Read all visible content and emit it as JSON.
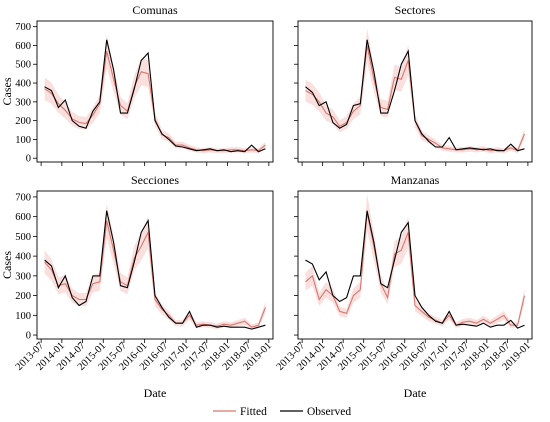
{
  "figure": {
    "xlabel": "Date",
    "ylabel": "Cases",
    "legend": {
      "position": "bottom-center",
      "items": [
        {
          "label": "Fitted",
          "color": "#d9776f",
          "key": "fitted"
        },
        {
          "label": "Observed",
          "color": "#000000",
          "key": "observed"
        }
      ]
    },
    "colors": {
      "fitted": "#d9776f",
      "ribbon": "#f4c7c3",
      "observed": "#000000",
      "frame": "#000000"
    }
  },
  "chart_data": [
    {
      "type": "line",
      "title": "Comunas",
      "xlabel": "",
      "ylabel": "Cases",
      "ylim": [
        0,
        700
      ],
      "yticks": [
        0,
        100,
        200,
        300,
        400,
        500,
        600,
        700
      ],
      "xlim": [
        "2013-07",
        "2019-01"
      ],
      "xticks": [
        "2013-07",
        "2014-01",
        "2014-07",
        "2015-01",
        "2015-07",
        "2016-01",
        "2016-07",
        "2017-01",
        "2017-07",
        "2018-01",
        "2018-07",
        "2019-01"
      ],
      "x": [
        "2013-08",
        "2013-10",
        "2013-12",
        "2014-02",
        "2014-04",
        "2014-06",
        "2014-08",
        "2014-10",
        "2014-12",
        "2015-02",
        "2015-04",
        "2015-06",
        "2015-08",
        "2015-10",
        "2015-12",
        "2016-02",
        "2016-04",
        "2016-06",
        "2016-08",
        "2016-10",
        "2016-12",
        "2017-02",
        "2017-04",
        "2017-06",
        "2017-08",
        "2017-10",
        "2017-12",
        "2018-02",
        "2018-04",
        "2018-06",
        "2018-08",
        "2018-10",
        "2018-12"
      ],
      "series": [
        {
          "name": "Fitted",
          "values": [
            370,
            345,
            290,
            255,
            210,
            190,
            185,
            230,
            290,
            570,
            420,
            280,
            250,
            380,
            460,
            450,
            210,
            125,
            110,
            70,
            70,
            55,
            45,
            40,
            45,
            40,
            40,
            45,
            45,
            40,
            45,
            40,
            70
          ]
        },
        {
          "name": "Observed",
          "values": [
            380,
            360,
            270,
            310,
            200,
            170,
            160,
            250,
            300,
            630,
            470,
            240,
            240,
            370,
            520,
            560,
            200,
            130,
            100,
            65,
            60,
            50,
            40,
            45,
            50,
            40,
            45,
            35,
            40,
            35,
            70,
            35,
            50
          ]
        }
      ]
    },
    {
      "type": "line",
      "title": "Sectores",
      "xlabel": "",
      "ylabel": "",
      "ylim": [
        0,
        700
      ],
      "yticks": [
        0,
        100,
        200,
        300,
        400,
        500,
        600,
        700
      ],
      "xlim": [
        "2013-07",
        "2019-01"
      ],
      "xticks": [
        "2013-07",
        "2014-01",
        "2014-07",
        "2015-01",
        "2015-07",
        "2016-01",
        "2016-07",
        "2017-01",
        "2017-07",
        "2018-01",
        "2018-07",
        "2019-01"
      ],
      "x": [
        "2013-08",
        "2013-10",
        "2013-12",
        "2014-02",
        "2014-04",
        "2014-06",
        "2014-08",
        "2014-10",
        "2014-12",
        "2015-02",
        "2015-04",
        "2015-06",
        "2015-08",
        "2015-10",
        "2015-12",
        "2016-02",
        "2016-04",
        "2016-06",
        "2016-08",
        "2016-10",
        "2016-12",
        "2017-02",
        "2017-04",
        "2017-06",
        "2017-08",
        "2017-10",
        "2017-12",
        "2018-02",
        "2018-04",
        "2018-06",
        "2018-08",
        "2018-10",
        "2018-12"
      ],
      "series": [
        {
          "name": "Fitted",
          "values": [
            360,
            340,
            300,
            240,
            220,
            170,
            190,
            250,
            280,
            600,
            420,
            270,
            260,
            430,
            420,
            520,
            200,
            120,
            100,
            80,
            55,
            50,
            45,
            45,
            50,
            45,
            50,
            40,
            45,
            40,
            55,
            40,
            130
          ]
        },
        {
          "name": "Observed",
          "values": [
            380,
            350,
            280,
            300,
            190,
            160,
            180,
            280,
            290,
            630,
            460,
            240,
            240,
            360,
            500,
            570,
            200,
            130,
            90,
            60,
            60,
            110,
            45,
            50,
            55,
            50,
            45,
            50,
            40,
            40,
            75,
            40,
            50
          ]
        }
      ]
    },
    {
      "type": "line",
      "title": "Secciones",
      "xlabel": "Date",
      "ylabel": "Cases",
      "ylim": [
        0,
        700
      ],
      "yticks": [
        0,
        100,
        200,
        300,
        400,
        500,
        600,
        700
      ],
      "xlim": [
        "2013-07",
        "2019-01"
      ],
      "xticks": [
        "2013-07",
        "2014-01",
        "2014-07",
        "2015-01",
        "2015-07",
        "2016-01",
        "2016-07",
        "2017-01",
        "2017-07",
        "2018-01",
        "2018-07",
        "2019-01"
      ],
      "x": [
        "2013-08",
        "2013-10",
        "2013-12",
        "2014-02",
        "2014-04",
        "2014-06",
        "2014-08",
        "2014-10",
        "2014-12",
        "2015-02",
        "2015-04",
        "2015-06",
        "2015-08",
        "2015-10",
        "2015-12",
        "2016-02",
        "2016-04",
        "2016-06",
        "2016-08",
        "2016-10",
        "2016-12",
        "2017-02",
        "2017-04",
        "2017-06",
        "2017-08",
        "2017-10",
        "2017-12",
        "2018-02",
        "2018-04",
        "2018-06",
        "2018-08",
        "2018-10",
        "2018-12"
      ],
      "series": [
        {
          "name": "Fitted",
          "values": [
            370,
            330,
            250,
            260,
            200,
            180,
            180,
            260,
            270,
            580,
            430,
            270,
            250,
            390,
            450,
            520,
            180,
            130,
            100,
            60,
            60,
            100,
            50,
            55,
            50,
            45,
            55,
            50,
            60,
            70,
            40,
            50,
            140
          ]
        },
        {
          "name": "Observed",
          "values": [
            380,
            350,
            240,
            300,
            190,
            150,
            170,
            300,
            300,
            630,
            470,
            250,
            240,
            370,
            520,
            580,
            200,
            140,
            90,
            60,
            60,
            120,
            40,
            50,
            50,
            40,
            45,
            40,
            40,
            40,
            30,
            40,
            50
          ]
        }
      ]
    },
    {
      "type": "line",
      "title": "Manzanas",
      "xlabel": "Date",
      "ylabel": "",
      "ylim": [
        0,
        700
      ],
      "yticks": [
        0,
        100,
        200,
        300,
        400,
        500,
        600,
        700
      ],
      "xlim": [
        "2013-07",
        "2019-01"
      ],
      "xticks": [
        "2013-07",
        "2014-01",
        "2014-07",
        "2015-01",
        "2015-07",
        "2016-01",
        "2016-07",
        "2017-01",
        "2017-07",
        "2018-01",
        "2018-07",
        "2019-01"
      ],
      "x": [
        "2013-08",
        "2013-10",
        "2013-12",
        "2014-02",
        "2014-04",
        "2014-06",
        "2014-08",
        "2014-10",
        "2014-12",
        "2015-02",
        "2015-04",
        "2015-06",
        "2015-08",
        "2015-10",
        "2015-12",
        "2016-02",
        "2016-04",
        "2016-06",
        "2016-08",
        "2016-10",
        "2016-12",
        "2017-02",
        "2017-04",
        "2017-06",
        "2017-08",
        "2017-10",
        "2017-12",
        "2018-02",
        "2018-04",
        "2018-06",
        "2018-08",
        "2018-10",
        "2018-12"
      ],
      "series": [
        {
          "name": "Fitted",
          "values": [
            270,
            300,
            180,
            230,
            200,
            120,
            110,
            200,
            230,
            620,
            450,
            260,
            190,
            410,
            430,
            520,
            150,
            120,
            90,
            75,
            60,
            100,
            50,
            65,
            70,
            60,
            80,
            60,
            80,
            100,
            50,
            50,
            200
          ]
        },
        {
          "name": "Observed",
          "values": [
            380,
            360,
            280,
            320,
            200,
            170,
            190,
            300,
            300,
            630,
            470,
            260,
            240,
            380,
            520,
            570,
            200,
            140,
            100,
            70,
            60,
            120,
            50,
            55,
            50,
            45,
            60,
            40,
            50,
            50,
            75,
            35,
            50
          ]
        }
      ]
    }
  ]
}
